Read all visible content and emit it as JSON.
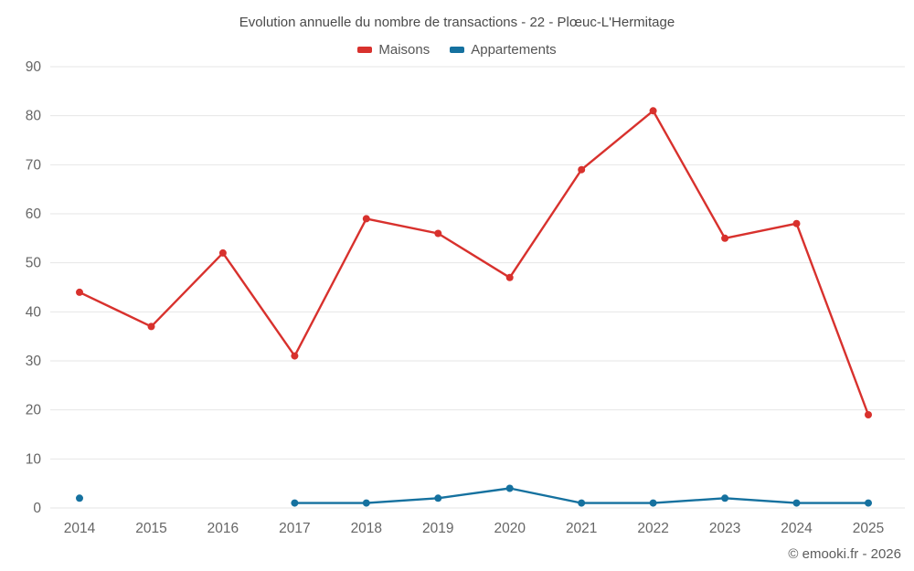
{
  "title": "Evolution annuelle du nombre de transactions - 22 - Plœuc-L'Hermitage",
  "footer": {
    "copyright": "© emooki.fr - 2026"
  },
  "colors": {
    "maisons": "#d8312d",
    "appartements": "#15719f",
    "gridline": "#e6e6e6",
    "axis_text": "#666666"
  },
  "chart_data": {
    "type": "line",
    "title": "Evolution annuelle du nombre de transactions - 22 - Plœuc-L'Hermitage",
    "categories": [
      "2014",
      "2015",
      "2016",
      "2017",
      "2018",
      "2019",
      "2020",
      "2021",
      "2022",
      "2023",
      "2024",
      "2025"
    ],
    "series": [
      {
        "name": "Maisons",
        "color": "#d8312d",
        "values": [
          44,
          37,
          52,
          31,
          59,
          56,
          47,
          69,
          81,
          55,
          58,
          19
        ]
      },
      {
        "name": "Appartements",
        "color": "#15719f",
        "values": [
          2,
          null,
          null,
          1,
          1,
          2,
          4,
          1,
          1,
          2,
          1,
          1
        ]
      }
    ],
    "xlabel": "",
    "ylabel": "",
    "ylim": [
      0,
      90
    ],
    "ytick_step": 10,
    "grid": true,
    "legend_position": "top"
  }
}
